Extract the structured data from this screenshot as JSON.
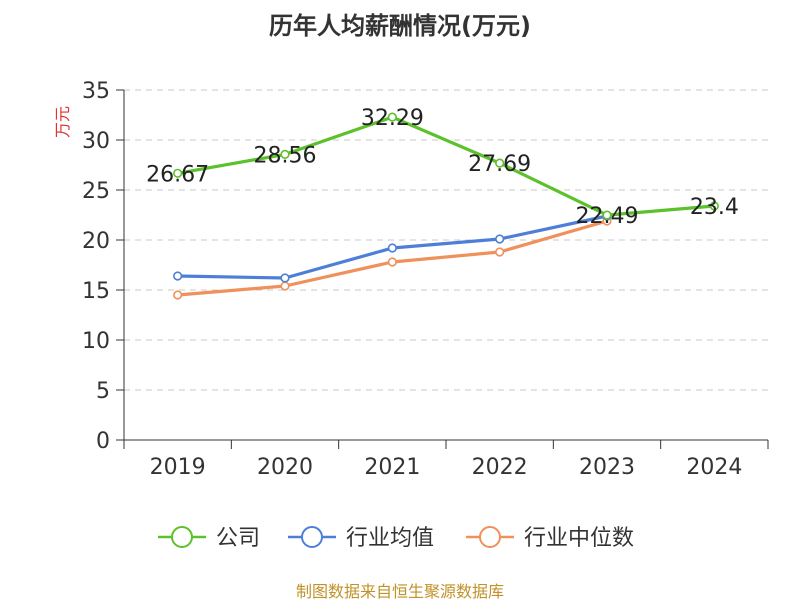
{
  "chart_data": {
    "type": "line",
    "title": "历年人均薪酬情况(万元)",
    "ylabel": "万元",
    "xlabel": "",
    "categories": [
      "2019",
      "2020",
      "2021",
      "2022",
      "2023",
      "2024"
    ],
    "ylim": [
      0,
      35
    ],
    "yticks": [
      0,
      5,
      10,
      15,
      20,
      25,
      30,
      35
    ],
    "grid": true,
    "legend_position": "bottom",
    "series": [
      {
        "name": "公司",
        "color": "#5cc12a",
        "values": [
          26.67,
          28.56,
          32.29,
          27.69,
          22.49,
          23.4
        ],
        "data_labels": [
          "26.67",
          "28.56",
          "32.29",
          "27.69",
          "22.49",
          "23.4"
        ]
      },
      {
        "name": "行业均值",
        "color": "#4e7fd8",
        "values": [
          16.4,
          16.2,
          19.2,
          20.1,
          22.4,
          null
        ]
      },
      {
        "name": "行业中位数",
        "color": "#f0905a",
        "values": [
          14.5,
          15.4,
          17.8,
          18.8,
          21.9,
          null
        ]
      }
    ]
  },
  "source_note": "制图数据来自恒生聚源数据库"
}
